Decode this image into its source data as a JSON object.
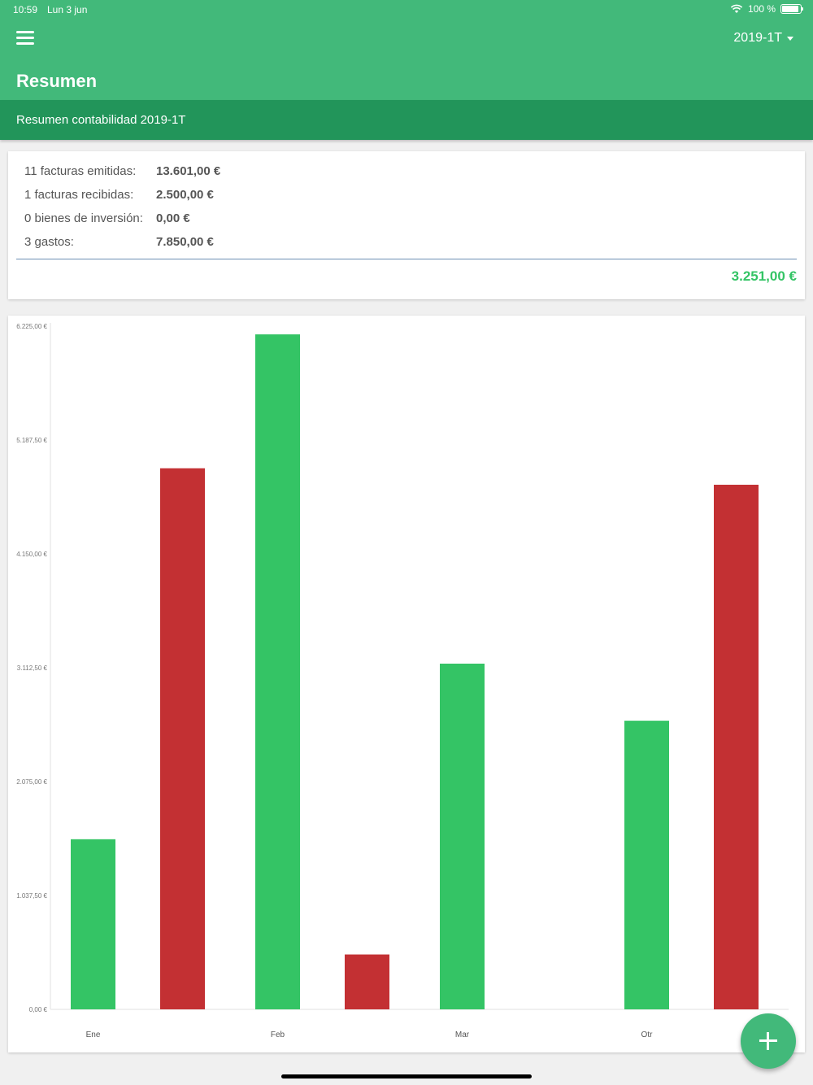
{
  "status_bar": {
    "time": "10:59",
    "date": "Lun 3 jun",
    "battery_text": "100 %",
    "battery_level": 1.0
  },
  "header": {
    "title": "Resumen",
    "period": "2019-1T",
    "menu_icon": "hamburger-menu-icon"
  },
  "subheader": {
    "text": "Resumen contabilidad 2019-1T"
  },
  "summary": {
    "rows": [
      {
        "label": "11 facturas emitidas:",
        "value": "13.601,00 €"
      },
      {
        "label": "1 facturas recibidas:",
        "value": "2.500,00 €"
      },
      {
        "label": "0 bienes de inversión:",
        "value": "0,00 €"
      },
      {
        "label": "3 gastos:",
        "value": "7.850,00 €"
      }
    ],
    "total": "3.251,00 €"
  },
  "colors": {
    "income": "#34c465",
    "expense": "#c33033",
    "appbar": "#42b97a",
    "subheader": "#22955a"
  },
  "chart_data": {
    "type": "bar",
    "categories": [
      "Ene",
      "Feb",
      "Mar",
      "Otr"
    ],
    "series": [
      {
        "values": [
          1550,
          6150,
          3150,
          2630
        ]
      },
      {
        "values": [
          4930,
          500,
          0,
          4780
        ]
      }
    ],
    "ylim": [
      0,
      6225
    ],
    "yticks": [
      0,
      1037.5,
      2075,
      3112.5,
      4150,
      5187.5,
      6225
    ],
    "ytick_labels": [
      "0,00 €",
      "1.037,50 €",
      "2.075,00 €",
      "3.112,50 €",
      "4.150,00 €",
      "5.187,50 €",
      "6.225,00 €"
    ],
    "grid": false,
    "legend": "none"
  }
}
